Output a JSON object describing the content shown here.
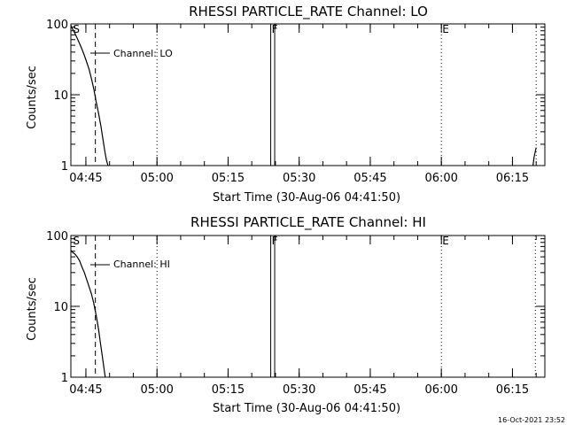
{
  "chart_data": [
    {
      "type": "line",
      "title": "RHESSI PARTICLE_RATE Channel: LO",
      "xlabel": "Start Time (30-Aug-06 04:41:50)",
      "ylabel": "Counts/sec",
      "yscale": "log",
      "ylim": [
        1,
        100
      ],
      "xlim": [
        "04:41:50",
        "06:21:50"
      ],
      "x_ticks": [
        "04:45",
        "05:00",
        "05:15",
        "05:30",
        "05:45",
        "06:00",
        "06:15"
      ],
      "y_ticks": [
        "1",
        "10",
        "100"
      ],
      "legend": "Channel: LO",
      "series": [
        {
          "name": "Channel: LO",
          "x": [
            "04:41:50",
            "04:42:10",
            "04:42:40",
            "04:43:10",
            "04:43:40",
            "04:44:10",
            "04:44:40",
            "04:45:10",
            "04:45:40",
            "04:46:10",
            "04:46:40",
            "04:47:10",
            "04:47:40",
            "04:48:10",
            "04:48:35",
            "04:49:00",
            "04:49:20",
            "04:49:40"
          ],
          "values": [
            95,
            85,
            74,
            63,
            53,
            44,
            36,
            29,
            23,
            17,
            12,
            8,
            5.5,
            3.6,
            2.4,
            1.6,
            1.2,
            1.0
          ]
        },
        {
          "name": "",
          "x": [
            "06:19:20",
            "06:19:35",
            "06:19:50",
            "06:20:00"
          ],
          "values": [
            1.0,
            1.35,
            1.6,
            1.8
          ]
        }
      ],
      "markers": [
        {
          "time": "04:42:05",
          "label": "S",
          "style": "none"
        },
        {
          "time": "04:47:00",
          "label": "",
          "style": "dashed"
        },
        {
          "time": "05:00:00",
          "label": "",
          "style": "dotted"
        },
        {
          "time": "05:24:00",
          "label": "F",
          "style": "solid"
        },
        {
          "time": "05:24:50",
          "label": "",
          "style": "solid"
        },
        {
          "time": "06:00:00",
          "label": "E",
          "style": "dotted"
        },
        {
          "time": "06:20:00",
          "label": "",
          "style": "dotted"
        }
      ]
    },
    {
      "type": "line",
      "title": "RHESSI PARTICLE_RATE Channel: HI",
      "xlabel": "Start Time (30-Aug-06 04:41:50)",
      "ylabel": "Counts/sec",
      "yscale": "log",
      "ylim": [
        1,
        100
      ],
      "xlim": [
        "04:41:50",
        "06:21:50"
      ],
      "x_ticks": [
        "04:45",
        "05:00",
        "05:15",
        "05:30",
        "05:45",
        "06:00",
        "06:15"
      ],
      "y_ticks": [
        "1",
        "10",
        "100"
      ],
      "legend": "Channel: HI",
      "series": [
        {
          "name": "Channel: HI",
          "x": [
            "04:41:50",
            "04:42:10",
            "04:42:40",
            "04:43:10",
            "04:43:40",
            "04:44:10",
            "04:44:40",
            "04:45:10",
            "04:45:40",
            "04:46:10",
            "04:46:40",
            "04:47:10",
            "04:47:40",
            "04:48:05",
            "04:48:30",
            "04:48:50",
            "04:49:05"
          ],
          "values": [
            62,
            58,
            55,
            50,
            44,
            36,
            30,
            24,
            19,
            15,
            11,
            7.5,
            4.8,
            3.0,
            1.9,
            1.3,
            1.0
          ]
        }
      ],
      "markers": [
        {
          "time": "04:42:05",
          "label": "S",
          "style": "none"
        },
        {
          "time": "04:47:00",
          "label": "",
          "style": "dashed"
        },
        {
          "time": "05:00:00",
          "label": "",
          "style": "dotted"
        },
        {
          "time": "05:24:00",
          "label": "F",
          "style": "solid"
        },
        {
          "time": "05:24:50",
          "label": "",
          "style": "solid"
        },
        {
          "time": "06:00:00",
          "label": "E",
          "style": "dotted"
        },
        {
          "time": "06:19:50",
          "label": "",
          "style": "dotted"
        }
      ]
    }
  ],
  "footer": {
    "date_stamp": "16-Oct-2021 23:52"
  }
}
